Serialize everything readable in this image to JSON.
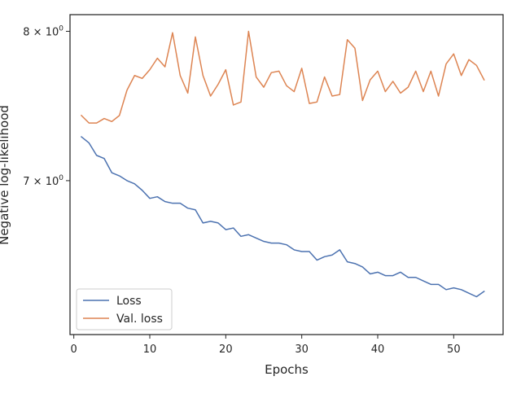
{
  "chart_data": {
    "type": "line",
    "title": "",
    "xlabel": "Epochs",
    "ylabel": "Negative log-likelihood",
    "xlim": [
      -0.5,
      56.5
    ],
    "ylim": [
      6.1,
      8.12
    ],
    "yscale": "log",
    "grid": false,
    "legend_position": "lower-left",
    "x_ticks": [
      0,
      10,
      20,
      30,
      40,
      50
    ],
    "y_ticks": [
      {
        "value": 7,
        "label_base": "7 × 10",
        "label_exp": "0"
      },
      {
        "value": 8,
        "label_base": "8 × 10",
        "label_exp": "0"
      }
    ],
    "x": [
      1,
      2,
      3,
      4,
      5,
      6,
      7,
      8,
      9,
      10,
      11,
      12,
      13,
      14,
      15,
      16,
      17,
      18,
      19,
      20,
      21,
      22,
      23,
      24,
      25,
      26,
      27,
      28,
      29,
      30,
      31,
      32,
      33,
      34,
      35,
      36,
      37,
      38,
      39,
      40,
      41,
      42,
      43,
      44,
      45,
      46,
      47,
      48,
      49,
      50,
      51,
      52,
      53,
      54
    ],
    "series": [
      {
        "name": "Loss",
        "color": "#4c72b0",
        "values": [
          7.28,
          7.24,
          7.16,
          7.14,
          7.05,
          7.03,
          7.0,
          6.98,
          6.94,
          6.89,
          6.9,
          6.87,
          6.86,
          6.86,
          6.83,
          6.82,
          6.74,
          6.75,
          6.74,
          6.7,
          6.71,
          6.66,
          6.67,
          6.65,
          6.63,
          6.62,
          6.62,
          6.61,
          6.58,
          6.57,
          6.57,
          6.52,
          6.54,
          6.55,
          6.58,
          6.51,
          6.5,
          6.48,
          6.44,
          6.45,
          6.43,
          6.43,
          6.45,
          6.42,
          6.42,
          6.4,
          6.38,
          6.38,
          6.35,
          6.36,
          6.35,
          6.33,
          6.31,
          6.34
        ]
      },
      {
        "name": "Val. loss",
        "color": "#dd8452",
        "values": [
          7.42,
          7.37,
          7.37,
          7.4,
          7.38,
          7.42,
          7.59,
          7.69,
          7.67,
          7.73,
          7.81,
          7.75,
          7.99,
          7.69,
          7.57,
          7.96,
          7.69,
          7.55,
          7.63,
          7.73,
          7.49,
          7.51,
          8.0,
          7.68,
          7.61,
          7.71,
          7.72,
          7.62,
          7.58,
          7.74,
          7.5,
          7.51,
          7.68,
          7.55,
          7.56,
          7.94,
          7.88,
          7.52,
          7.66,
          7.72,
          7.58,
          7.65,
          7.57,
          7.61,
          7.72,
          7.58,
          7.72,
          7.55,
          7.77,
          7.84,
          7.69,
          7.8,
          7.76,
          7.66
        ]
      }
    ]
  }
}
